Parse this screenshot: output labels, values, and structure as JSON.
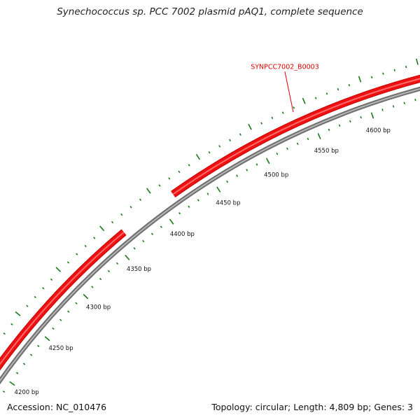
{
  "title": "Synechococcus sp. PCC 7002 plasmid pAQ1, complete sequence",
  "footer": {
    "accession": "Accession: NC_010476",
    "topology": "Topology: circular; Length: 4,809 bp; Genes: 3"
  },
  "colors": {
    "backbone": "#8a8a8a",
    "gene": "#ee1111",
    "tick": "#1a7a1a",
    "label": "#e00000"
  },
  "scale_labels": [
    "4200 bp",
    "4250 bp",
    "4300 bp",
    "4350 bp",
    "4400 bp",
    "4450 bp",
    "4500 bp",
    "4550 bp",
    "4600 bp"
  ],
  "genes": [
    {
      "name": "SYNPCC7002_B0003",
      "start_bp": 4415,
      "end_bp": 4809
    },
    {
      "name": "",
      "start_bp": 4180,
      "end_bp": 4362
    }
  ]
}
